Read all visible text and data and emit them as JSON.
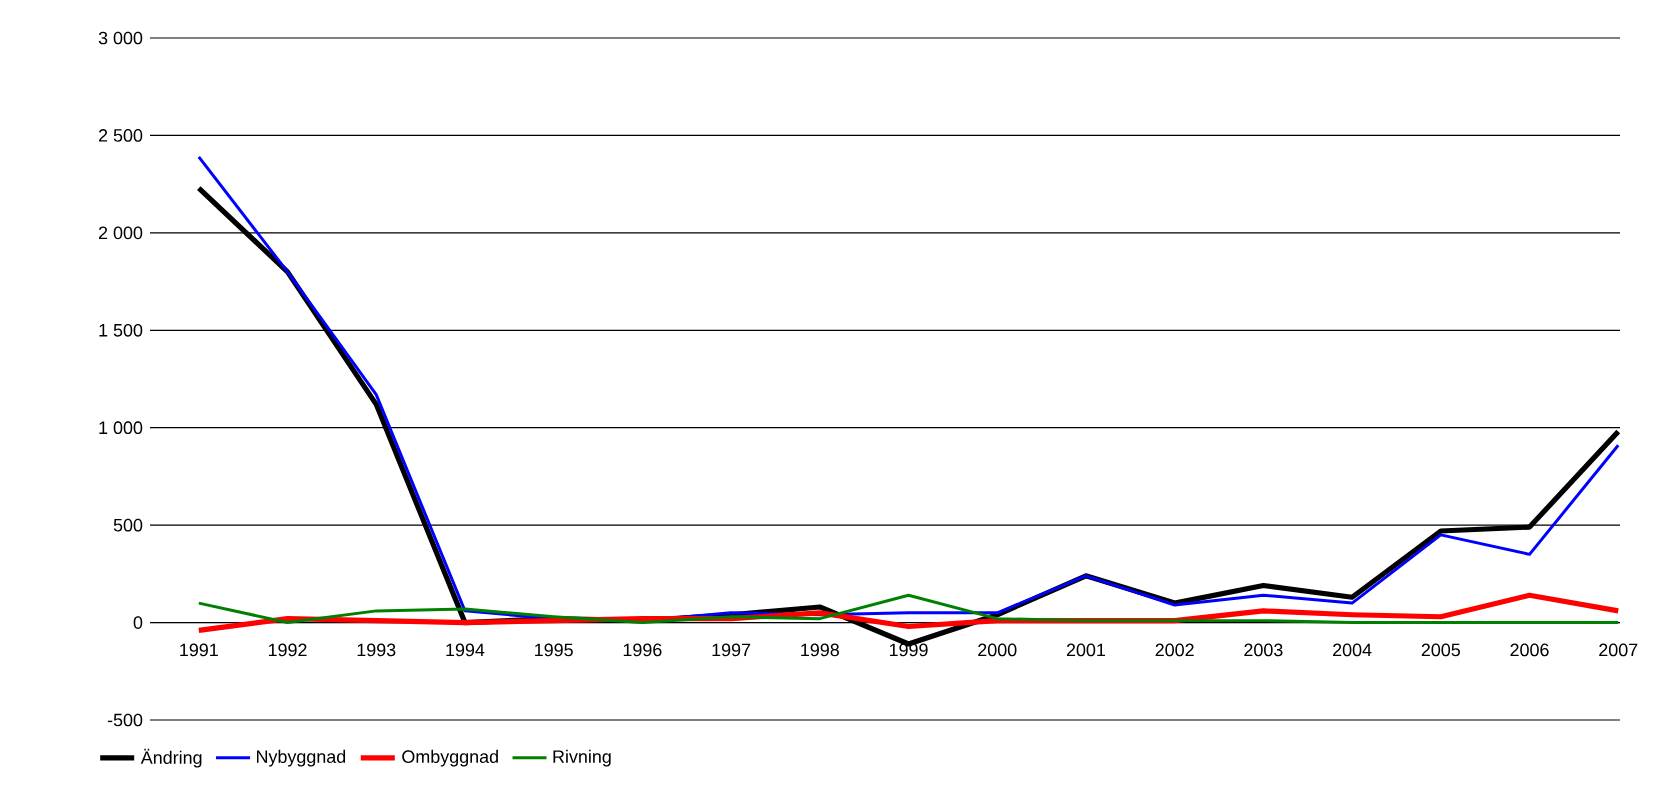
{
  "chart_data": {
    "type": "line",
    "categories": [
      "1991",
      "1992",
      "1993",
      "1994",
      "1995",
      "1996",
      "1997",
      "1998",
      "1999",
      "2000",
      "2001",
      "2002",
      "2003",
      "2004",
      "2005",
      "2006",
      "2007"
    ],
    "series": [
      {
        "name": "Ändring",
        "color": "#000000",
        "values": [
          2230,
          1800,
          1120,
          0,
          20,
          10,
          40,
          80,
          -110,
          40,
          240,
          100,
          190,
          130,
          470,
          490,
          980
        ]
      },
      {
        "name": "Nybyggnad",
        "color": "#0000ff",
        "values": [
          2390,
          1800,
          1170,
          60,
          20,
          10,
          50,
          40,
          50,
          50,
          240,
          90,
          140,
          100,
          450,
          350,
          910
        ]
      },
      {
        "name": "Ombyggnad",
        "color": "#ff0000",
        "values": [
          -40,
          20,
          10,
          0,
          10,
          20,
          20,
          50,
          -20,
          10,
          10,
          10,
          60,
          40,
          30,
          140,
          60
        ]
      },
      {
        "name": "Rivning",
        "color": "#008000",
        "values": [
          100,
          0,
          60,
          70,
          30,
          0,
          30,
          20,
          140,
          20,
          10,
          10,
          10,
          0,
          0,
          0,
          0
        ]
      }
    ],
    "ylim": [
      -500,
      3000
    ],
    "yticks": [
      {
        "value": -500,
        "label": "-500"
      },
      {
        "value": 0,
        "label": "0"
      },
      {
        "value": 500,
        "label": "500"
      },
      {
        "value": 1000,
        "label": "1 000"
      },
      {
        "value": 1500,
        "label": "1 500"
      },
      {
        "value": 2000,
        "label": "2 000"
      },
      {
        "value": 2500,
        "label": "2 500"
      },
      {
        "value": 3000,
        "label": "3 000"
      }
    ],
    "grid": "y",
    "legend": "bottom left",
    "marker": "none",
    "line_style": "solid"
  }
}
